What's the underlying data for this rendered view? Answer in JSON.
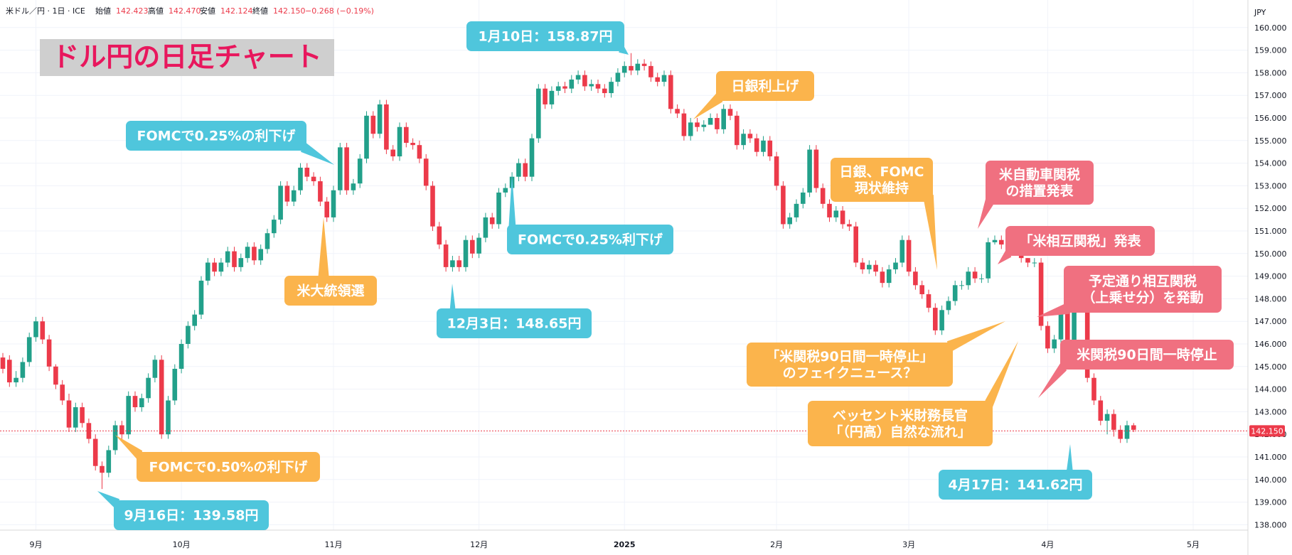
{
  "header": {
    "symbol": "米ドル／円 · 1日 · ICE",
    "open_label": "始値",
    "open": "142.423",
    "high_label": "高値",
    "high": "142.470",
    "low_label": "安値",
    "low": "142.124",
    "close_label": "終値",
    "close": "142.150",
    "change": "−0.268 (−0.19%)",
    "currency": "JPY"
  },
  "title": "ドル円の日足チャート",
  "colors": {
    "up": "#22a08a",
    "down": "#ec3a4a",
    "blue": "#4fc6dc",
    "orange": "#fbb44c",
    "red": "#f07080",
    "titleText": "#e8175d",
    "titleBg": "#cfcfcf",
    "priceLine": "#ec3a4a"
  },
  "current_price_label": "142.150",
  "callouts": [
    {
      "id": "sep16",
      "lines": [
        "9月16日：139.58円"
      ],
      "color": "blue"
    },
    {
      "id": "fomc050",
      "lines": [
        "FOMCで0.50%の利下げ"
      ],
      "color": "orange"
    },
    {
      "id": "fomc025a",
      "lines": [
        "FOMCで0.25%の利下げ"
      ],
      "color": "blue"
    },
    {
      "id": "election",
      "lines": [
        "米大統領選"
      ],
      "color": "orange"
    },
    {
      "id": "dec3",
      "lines": [
        "12月3日：148.65円"
      ],
      "color": "blue"
    },
    {
      "id": "fomc025b",
      "lines": [
        "FOMCで0.25%利下げ"
      ],
      "color": "blue"
    },
    {
      "id": "jan10",
      "lines": [
        "1月10日：158.87円"
      ],
      "color": "blue"
    },
    {
      "id": "bojhike",
      "lines": [
        "日銀利上げ"
      ],
      "color": "orange"
    },
    {
      "id": "bojfomc",
      "lines": [
        "日銀、FOMC",
        "現状維持"
      ],
      "color": "orange"
    },
    {
      "id": "autotariff",
      "lines": [
        "米自動車関税",
        "の措置発表"
      ],
      "color": "red"
    },
    {
      "id": "reciprocal",
      "lines": [
        "「米相互関税」発表"
      ],
      "color": "red"
    },
    {
      "id": "reciprocal2",
      "lines": [
        "予定通り相互関税",
        "（上乗せ分）を発動"
      ],
      "color": "red"
    },
    {
      "id": "fakenews",
      "lines": [
        "「米関税90日間一時停止」",
        "のフェイクニュース？"
      ],
      "color": "orange"
    },
    {
      "id": "pause90",
      "lines": [
        "米関税90日間一時停止"
      ],
      "color": "red"
    },
    {
      "id": "bessent",
      "lines": [
        "ベッセント米財務長官",
        "「（円高）自然な流れ」"
      ],
      "color": "orange"
    },
    {
      "id": "apr17",
      "lines": [
        "4月17日：141.62円"
      ],
      "color": "blue"
    }
  ],
  "chart_data": {
    "type": "candlestick",
    "ylim": [
      137.5,
      160.6
    ],
    "yticks": [
      138,
      139,
      140,
      141,
      142,
      143,
      144,
      145,
      146,
      147,
      148,
      149,
      150,
      151,
      152,
      153,
      154,
      155,
      156,
      157,
      158,
      159,
      160
    ],
    "x_ticks": [
      {
        "label": "9月",
        "index": 5
      },
      {
        "label": "10月",
        "index": 27
      },
      {
        "label": "11月",
        "index": 50
      },
      {
        "label": "12月",
        "index": 72
      },
      {
        "label": "2025",
        "index": 94
      },
      {
        "label": "2月",
        "index": 117
      },
      {
        "label": "3月",
        "index": 137
      },
      {
        "label": "4月",
        "index": 158
      },
      {
        "label": "5月",
        "index": 180
      }
    ],
    "closes": [
      144.9,
      144.3,
      144.5,
      145.2,
      146.3,
      147.0,
      146.2,
      145.0,
      144.2,
      143.5,
      142.3,
      143.2,
      142.5,
      141.8,
      140.6,
      140.3,
      141.3,
      142.4,
      142.0,
      143.7,
      143.2,
      143.6,
      144.5,
      145.3,
      142.0,
      143.5,
      144.9,
      146.0,
      146.8,
      147.3,
      148.8,
      149.6,
      149.2,
      149.6,
      150.1,
      149.4,
      149.8,
      150.3,
      149.7,
      150.2,
      150.9,
      151.5,
      153.0,
      152.3,
      152.8,
      153.8,
      153.4,
      153.2,
      152.3,
      151.6,
      152.8,
      154.7,
      152.8,
      153.1,
      154.2,
      156.1,
      155.3,
      156.6,
      154.6,
      154.3,
      155.6,
      154.9,
      154.8,
      154.2,
      153.0,
      151.2,
      150.4,
      149.4,
      149.7,
      149.4,
      150.6,
      150.0,
      150.7,
      151.6,
      151.3,
      152.7,
      152.9,
      153.4,
      154.0,
      153.4,
      155.1,
      157.3,
      156.6,
      157.2,
      157.4,
      157.3,
      157.7,
      157.9,
      157.4,
      157.5,
      157.3,
      157.1,
      157.6,
      158.0,
      158.3,
      158.1,
      158.4,
      158.3,
      157.8,
      157.6,
      157.9,
      156.4,
      156.2,
      155.2,
      155.8,
      155.6,
      155.7,
      156.0,
      155.5,
      156.4,
      156.1,
      154.8,
      155.3,
      155.1,
      154.5,
      155.0,
      154.3,
      153.0,
      151.3,
      151.6,
      152.2,
      152.7,
      154.6,
      152.9,
      152.2,
      151.6,
      151.9,
      151.3,
      151.2,
      149.6,
      149.3,
      149.5,
      149.2,
      148.7,
      149.3,
      149.6,
      150.6,
      149.2,
      148.6,
      148.2,
      147.6,
      146.6,
      147.5,
      147.9,
      148.6,
      148.6,
      149.2,
      148.9,
      148.9,
      150.5,
      150.6,
      150.4,
      150.3,
      150.8,
      149.8,
      149.6,
      149.6,
      146.8,
      145.8,
      146.2,
      147.4,
      146.0,
      147.5,
      147.7,
      144.5,
      143.5,
      142.6,
      142.9,
      142.2,
      141.8,
      142.4,
      142.2
    ],
    "opens": [
      145.4,
      145.3,
      144.3,
      144.5,
      145.2,
      146.3,
      147.0,
      146.2,
      145.0,
      144.2,
      143.5,
      142.3,
      143.2,
      142.5,
      141.8,
      140.6,
      140.3,
      141.3,
      142.4,
      142.0,
      143.7,
      143.2,
      143.6,
      144.5,
      145.3,
      142.0,
      143.5,
      144.9,
      146.0,
      146.8,
      147.3,
      148.8,
      149.6,
      149.2,
      149.6,
      150.1,
      149.4,
      149.8,
      150.3,
      149.7,
      150.2,
      150.9,
      151.5,
      153.0,
      152.3,
      152.8,
      153.8,
      153.4,
      153.2,
      152.3,
      151.6,
      152.8,
      154.7,
      152.8,
      153.1,
      154.2,
      156.1,
      155.3,
      156.6,
      154.6,
      154.3,
      155.6,
      154.9,
      154.8,
      154.2,
      153.0,
      151.2,
      150.4,
      149.4,
      149.7,
      149.4,
      150.6,
      150.0,
      150.7,
      151.6,
      151.3,
      152.7,
      152.9,
      153.4,
      154.0,
      153.4,
      155.1,
      157.3,
      156.6,
      157.2,
      157.4,
      157.3,
      157.7,
      157.9,
      157.4,
      157.5,
      157.3,
      157.1,
      157.6,
      158.0,
      158.3,
      158.1,
      158.4,
      158.3,
      157.8,
      157.6,
      157.9,
      156.4,
      156.2,
      155.2,
      155.8,
      155.6,
      155.7,
      156.0,
      155.5,
      156.4,
      156.1,
      154.8,
      155.3,
      155.1,
      154.5,
      155.0,
      154.3,
      153.0,
      151.3,
      151.6,
      152.2,
      152.7,
      154.6,
      152.9,
      152.2,
      151.6,
      151.9,
      151.3,
      151.2,
      149.6,
      149.3,
      149.5,
      149.2,
      148.7,
      149.3,
      149.6,
      150.6,
      149.2,
      148.6,
      148.2,
      147.6,
      146.6,
      147.5,
      147.9,
      148.6,
      148.6,
      149.2,
      148.9,
      148.9,
      150.5,
      150.6,
      150.4,
      150.3,
      150.8,
      149.8,
      149.6,
      149.6,
      146.8,
      145.8,
      146.2,
      147.4,
      146.0,
      147.5,
      147.7,
      144.5,
      143.5,
      142.6,
      142.9,
      142.2,
      141.8,
      142.4
    ],
    "highs": [
      145.6,
      145.5,
      144.8,
      145.4,
      146.5,
      147.2,
      147.2,
      146.4,
      145.1,
      144.4,
      143.8,
      143.4,
      143.4,
      142.7,
      142.0,
      140.8,
      141.5,
      142.6,
      142.6,
      143.9,
      143.9,
      143.8,
      144.7,
      145.5,
      145.5,
      143.7,
      145.1,
      146.2,
      147.0,
      147.5,
      149.0,
      149.8,
      149.8,
      149.8,
      150.3,
      150.3,
      150.0,
      150.5,
      150.5,
      150.4,
      151.1,
      151.7,
      153.2,
      153.2,
      153.0,
      154.0,
      154.0,
      153.6,
      153.4,
      152.5,
      153.0,
      154.9,
      154.9,
      153.3,
      154.4,
      156.3,
      156.3,
      156.8,
      156.8,
      154.8,
      155.8,
      155.8,
      155.1,
      155.0,
      154.4,
      153.2,
      151.4,
      150.6,
      149.9,
      149.9,
      150.8,
      150.8,
      150.9,
      151.8,
      151.8,
      152.9,
      153.1,
      153.6,
      154.2,
      154.2,
      155.3,
      157.5,
      157.5,
      157.4,
      157.6,
      157.6,
      157.9,
      158.1,
      158.1,
      157.7,
      157.7,
      157.5,
      157.8,
      158.2,
      158.5,
      158.87,
      158.6,
      158.6,
      158.5,
      158.0,
      158.1,
      158.1,
      156.6,
      156.4,
      156.0,
      156.0,
      155.9,
      156.2,
      156.2,
      156.6,
      156.6,
      156.3,
      155.5,
      155.5,
      155.3,
      155.2,
      155.2,
      154.5,
      153.2,
      151.8,
      152.4,
      152.9,
      154.8,
      154.8,
      153.1,
      152.4,
      152.1,
      152.1,
      151.5,
      151.4,
      149.8,
      149.7,
      149.7,
      149.4,
      149.5,
      149.8,
      150.8,
      150.8,
      149.4,
      148.8,
      148.4,
      147.8,
      147.7,
      148.1,
      148.8,
      148.8,
      149.4,
      149.4,
      149.1,
      150.7,
      150.8,
      150.8,
      150.6,
      151.0,
      151.0,
      149.8,
      149.8,
      149.8,
      147.0,
      146.4,
      147.6,
      147.6,
      147.7,
      147.9,
      147.9,
      144.7,
      143.7,
      143.1,
      143.1,
      142.4,
      142.6,
      142.5
    ],
    "lows": [
      144.7,
      144.1,
      144.1,
      144.3,
      145.0,
      146.1,
      146.0,
      144.8,
      144.0,
      143.3,
      142.1,
      142.1,
      142.3,
      141.6,
      140.4,
      139.58,
      140.1,
      141.1,
      141.8,
      141.8,
      143.0,
      143.0,
      143.4,
      144.3,
      141.8,
      141.8,
      143.3,
      144.7,
      145.8,
      146.6,
      147.1,
      148.6,
      149.0,
      149.0,
      149.4,
      149.2,
      149.2,
      149.6,
      149.5,
      149.5,
      150.0,
      150.7,
      151.3,
      152.1,
      152.1,
      152.6,
      153.2,
      153.0,
      152.1,
      151.4,
      151.4,
      152.6,
      152.6,
      152.6,
      152.9,
      154.0,
      155.1,
      155.1,
      154.4,
      154.1,
      154.1,
      154.7,
      154.6,
      154.0,
      152.8,
      151.0,
      150.2,
      149.2,
      149.2,
      149.2,
      149.2,
      149.8,
      149.8,
      150.5,
      151.1,
      151.1,
      152.5,
      152.7,
      153.2,
      153.2,
      153.2,
      154.9,
      156.4,
      156.4,
      157.0,
      157.1,
      157.1,
      157.5,
      157.2,
      157.2,
      157.1,
      156.9,
      156.9,
      157.4,
      157.8,
      157.9,
      157.9,
      158.1,
      157.6,
      157.4,
      157.4,
      156.2,
      156.0,
      155.0,
      155.0,
      155.4,
      155.4,
      155.8,
      155.3,
      155.3,
      155.9,
      154.6,
      154.6,
      154.9,
      154.3,
      154.3,
      154.1,
      152.8,
      151.1,
      151.1,
      151.4,
      152.0,
      152.5,
      152.7,
      152.0,
      151.4,
      151.4,
      151.1,
      151.0,
      149.4,
      149.1,
      149.1,
      149.0,
      148.5,
      148.5,
      149.1,
      149.4,
      149.0,
      148.4,
      148.0,
      147.4,
      146.4,
      146.4,
      147.3,
      147.7,
      148.4,
      148.4,
      148.7,
      148.7,
      148.7,
      150.4,
      150.2,
      150.1,
      150.1,
      149.6,
      149.4,
      149.4,
      146.6,
      145.6,
      145.6,
      146.0,
      145.8,
      145.8,
      147.5,
      144.3,
      143.3,
      142.4,
      142.0,
      141.9,
      141.62,
      141.62,
      142.1
    ]
  }
}
